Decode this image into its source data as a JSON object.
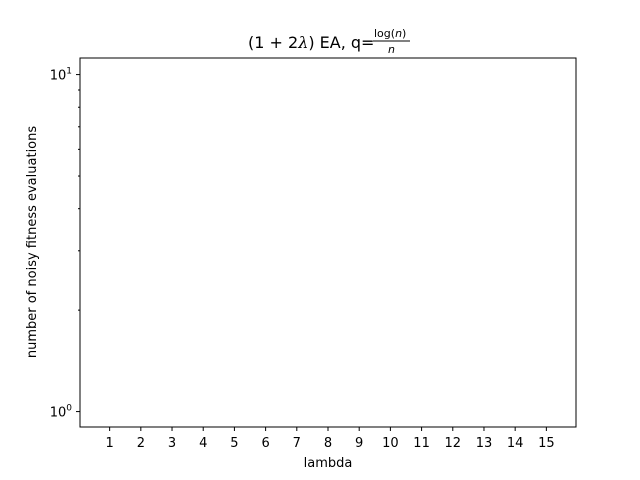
{
  "chart_data": {
    "type": "line",
    "title": {
      "prefix": "(1 + 2",
      "lambda": "λ",
      "mid": ") EA, q=",
      "frac_num_func": "log(",
      "frac_num_var": "n",
      "frac_num_close": ")",
      "frac_den": "n"
    },
    "xlabel": "lambda",
    "ylabel": "number of noisy fitness evaluations",
    "x": [
      1,
      2,
      3,
      4,
      5,
      6,
      7,
      8,
      9,
      10,
      11,
      12,
      13,
      14,
      15
    ],
    "xticks": [
      "1",
      "2",
      "3",
      "4",
      "5",
      "6",
      "7",
      "8",
      "9",
      "10",
      "11",
      "12",
      "13",
      "14",
      "15"
    ],
    "xlim": [
      0.05,
      15.95
    ],
    "yscale": "log",
    "ylim": [
      0.9,
      11.2
    ],
    "yticks": [
      {
        "value": 1,
        "base": "10",
        "exp": "0"
      },
      {
        "value": 10,
        "base": "10",
        "exp": "1"
      }
    ],
    "series": [],
    "grid": false,
    "legend": "none"
  }
}
